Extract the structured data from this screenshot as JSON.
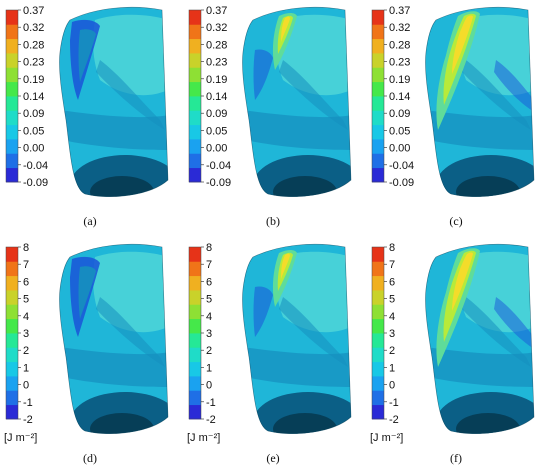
{
  "colorbar_colors": [
    "#2a2ad6",
    "#1f6fe6",
    "#1aa2f0",
    "#18c8e6",
    "#1fdcc8",
    "#25e896",
    "#45e84a",
    "#8ee034",
    "#c9d22a",
    "#f0b020",
    "#f07418",
    "#e63318"
  ],
  "contour_colors": {
    "base": "#1fb6d8",
    "light": "#4fd6d8",
    "mid": "#168fbf",
    "deep": "#0b5f86",
    "dark": "#063e57",
    "blue": "#1a55d8",
    "green": "#5fdc9a",
    "lime": "#b8ea3a",
    "yellow": "#f4dc2a"
  },
  "panels": [
    {
      "caption": "(a)",
      "colorbar_ticks": [
        "0.37",
        "0.32",
        "0.28",
        "0.23",
        "0.19",
        "0.14",
        "0.09",
        "0.05",
        "0.00",
        "-0.04",
        "-0.09"
      ],
      "unit": ""
    },
    {
      "caption": "(b)",
      "colorbar_ticks": [
        "0.37",
        "0.32",
        "0.28",
        "0.23",
        "0.19",
        "0.14",
        "0.09",
        "0.05",
        "0.00",
        "-0.04",
        "-0.09"
      ],
      "unit": ""
    },
    {
      "caption": "(c)",
      "colorbar_ticks": [
        "0.37",
        "0.32",
        "0.28",
        "0.23",
        "0.19",
        "0.14",
        "0.09",
        "0.05",
        "0.00",
        "-0.04",
        "-0.09"
      ],
      "unit": ""
    },
    {
      "caption": "(d)",
      "colorbar_ticks": [
        "8",
        "7",
        "6",
        "5",
        "4",
        "3",
        "2",
        "1",
        "0",
        "-1",
        "-2"
      ],
      "unit": "[J m⁻²]"
    },
    {
      "caption": "(e)",
      "colorbar_ticks": [
        "8",
        "7",
        "6",
        "5",
        "4",
        "3",
        "2",
        "1",
        "0",
        "-1",
        "-2"
      ],
      "unit": "[J m⁻²]"
    },
    {
      "caption": "(f)",
      "colorbar_ticks": [
        "8",
        "7",
        "6",
        "5",
        "4",
        "3",
        "2",
        "1",
        "0",
        "-1",
        "-2"
      ],
      "unit": "[J m⁻²]"
    }
  ]
}
